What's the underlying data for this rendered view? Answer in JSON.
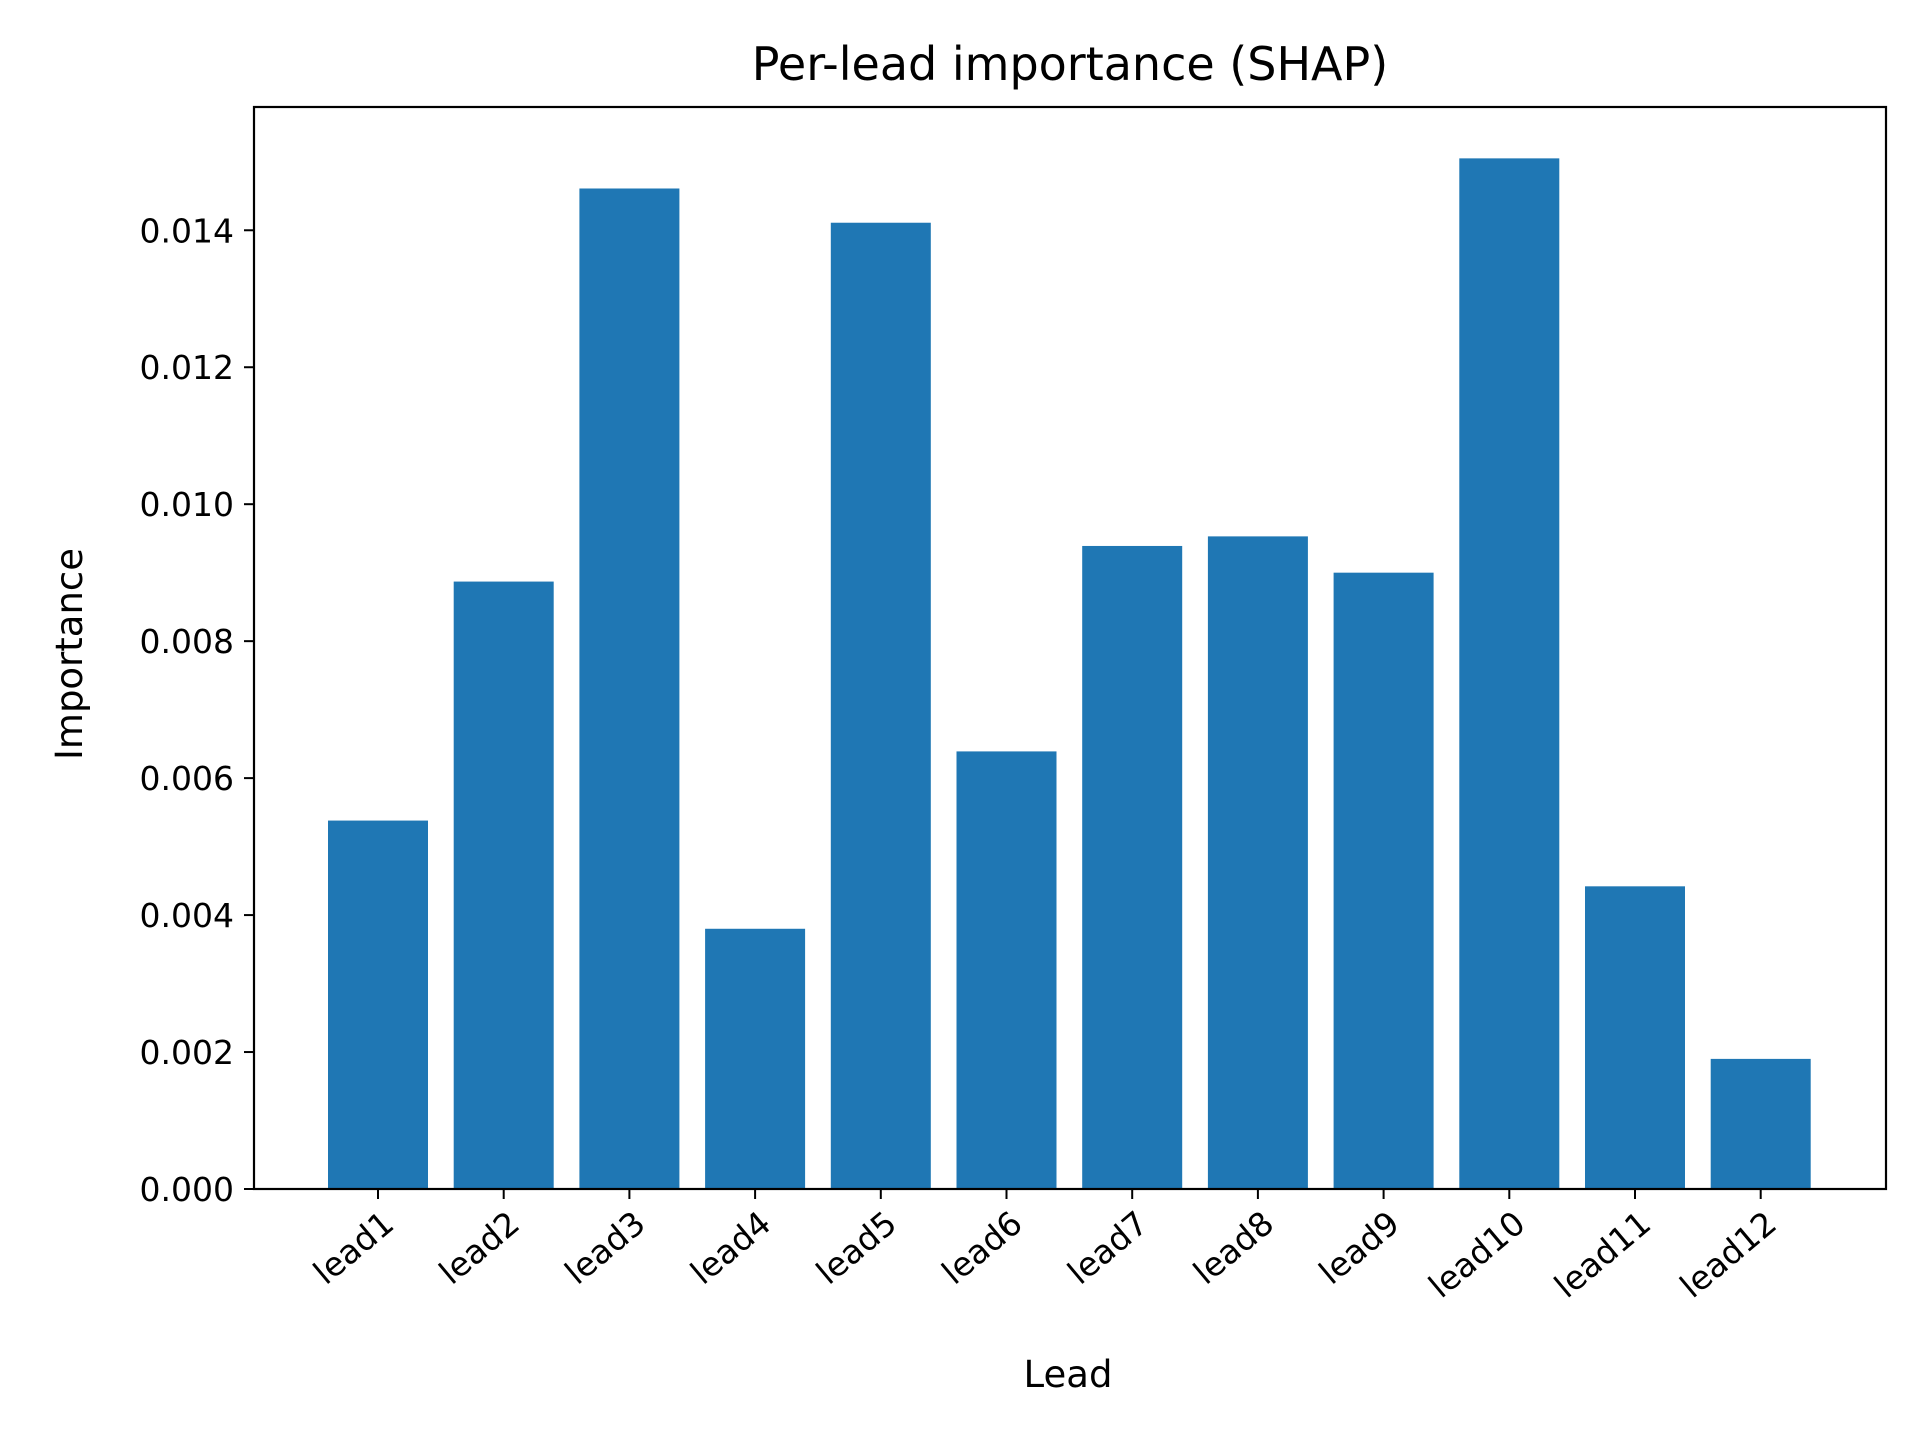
{
  "chart_data": {
    "type": "bar",
    "title": "Per-lead importance (SHAP)",
    "xlabel": "Lead",
    "ylabel": "Importance",
    "categories": [
      "lead1",
      "lead2",
      "lead3",
      "lead4",
      "lead5",
      "lead6",
      "lead7",
      "lead8",
      "lead9",
      "lead10",
      "lead11",
      "lead12"
    ],
    "values": [
      0.00538,
      0.00887,
      0.01461,
      0.0038,
      0.01411,
      0.00639,
      0.00939,
      0.00953,
      0.009,
      0.01505,
      0.00442,
      0.0019
    ],
    "ylim": [
      0,
      0.0158
    ],
    "yticks": [
      0.0,
      0.002,
      0.004,
      0.006,
      0.008,
      0.01,
      0.012,
      0.014
    ],
    "ytick_labels": [
      "0.000",
      "0.002",
      "0.004",
      "0.006",
      "0.008",
      "0.010",
      "0.012",
      "0.014"
    ],
    "grid": false,
    "bar_color": "#1f77b4"
  }
}
